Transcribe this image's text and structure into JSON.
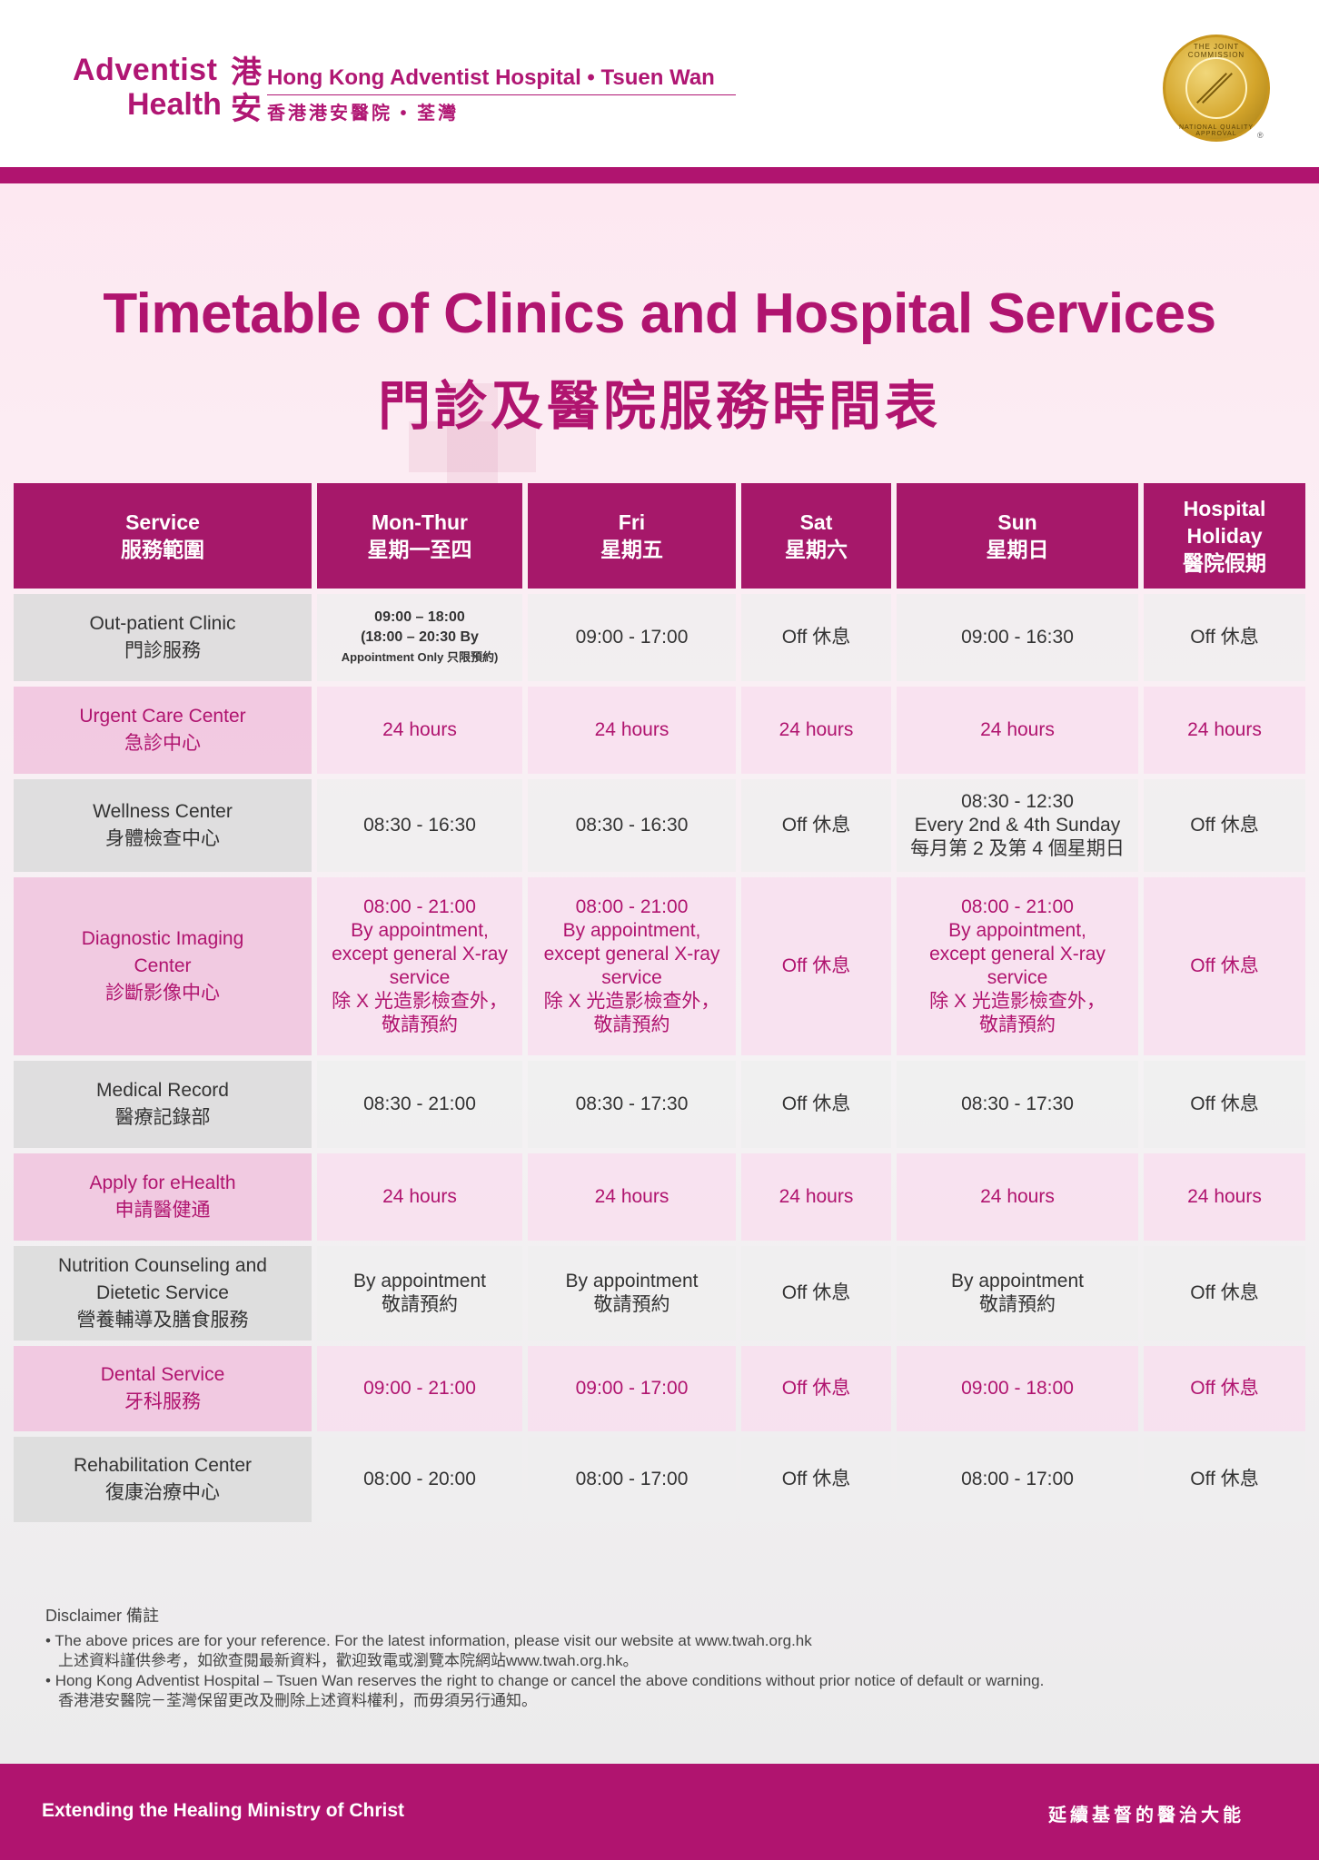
{
  "brand": {
    "logo_line1": "Adventist",
    "logo_line2": "Health",
    "logo_zh": "港安",
    "hospital_en": "Hong Kong Adventist Hospital • Tsuen Wan",
    "hospital_zh": "香港港安醫院 • 荃灣",
    "seal_top": "THE JOINT COMMISSION",
    "seal_bottom": "NATIONAL QUALITY APPROVAL",
    "seal_reg": "®",
    "accent_color": "#b0146f",
    "seal_icon": "gold-accreditation-seal-icon"
  },
  "title": {
    "en": "Timetable of Clinics and Hospital Services",
    "zh": "門診及醫院服務時間表"
  },
  "table": {
    "headers": [
      {
        "en": "Service",
        "zh": "服務範圍"
      },
      {
        "en": "Mon-Thur",
        "zh": "星期一至四"
      },
      {
        "en": "Fri",
        "zh": "星期五"
      },
      {
        "en": "Sat",
        "zh": "星期六"
      },
      {
        "en": "Sun",
        "zh": "星期日"
      },
      {
        "en": "Hospital Holiday",
        "zh": "醫院假期"
      }
    ],
    "rows": [
      {
        "label_en": "Out-patient Clinic",
        "label_zh": "門診服務",
        "mon_line1": "09:00 – 18:00",
        "mon_line2": "(18:00 – 20:30 By",
        "mon_line3": "Appointment Only 只限預約)",
        "fri": "09:00 - 17:00",
        "sat": "Off 休息",
        "sun": "09:00 - 16:30",
        "holiday": "Off 休息"
      },
      {
        "label_en": "Urgent Care Center",
        "label_zh": "急診中心",
        "mon": "24 hours",
        "fri": "24 hours",
        "sat": "24 hours",
        "sun": "24 hours",
        "holiday": "24 hours"
      },
      {
        "label_en": "Wellness Center",
        "label_zh": "身體檢查中心",
        "mon": "08:30 - 16:30",
        "fri": "08:30 - 16:30",
        "sat": "Off 休息",
        "sun_line1": "08:30 - 12:30",
        "sun_line2": "Every 2nd & 4th Sunday",
        "sun_line3": "每月第 2 及第 4 個星期日",
        "holiday": "Off 休息"
      },
      {
        "label_en_1": "Diagnostic Imaging",
        "label_en_2": "Center",
        "label_zh": "診斷影像中心",
        "mon_lines": [
          "08:00 - 21:00",
          "By appointment,",
          "except general X-ray",
          "service",
          "除 X 光造影檢查外，",
          "敬請預約"
        ],
        "fri_lines": [
          "08:00 - 21:00",
          "By appointment,",
          "except general X-ray",
          "service",
          "除 X 光造影檢查外，",
          "敬請預約"
        ],
        "sat": "Off 休息",
        "sun_lines": [
          "08:00 - 21:00",
          "By appointment,",
          "except general X-ray",
          "service",
          "除 X 光造影檢查外，",
          "敬請預約"
        ],
        "holiday": "Off 休息"
      },
      {
        "label_en": "Medical Record",
        "label_zh": "醫療記錄部",
        "mon": "08:30 - 21:00",
        "fri": "08:30 - 17:30",
        "sat": "Off 休息",
        "sun": "08:30 - 17:30",
        "holiday": "Off 休息"
      },
      {
        "label_en": "Apply for eHealth",
        "label_zh": "申請醫健通",
        "mon": "24 hours",
        "fri": "24 hours",
        "sat": "24 hours",
        "sun": "24 hours",
        "holiday": "24 hours"
      },
      {
        "label_en_1": "Nutrition Counseling and",
        "label_en_2": "Dietetic Service",
        "label_zh": "營養輔導及膳食服務",
        "mon_1": "By appointment",
        "mon_2": "敬請預約",
        "fri_1": "By appointment",
        "fri_2": "敬請預約",
        "sat": "Off 休息",
        "sun_1": "By appointment",
        "sun_2": "敬請預約",
        "holiday": "Off 休息"
      },
      {
        "label_en": "Dental Service",
        "label_zh": "牙科服務",
        "mon": "09:00 - 21:00",
        "fri": "09:00 - 17:00",
        "sat": "Off 休息",
        "sun": "09:00 - 18:00",
        "holiday": "Off 休息"
      },
      {
        "label_en": "Rehabilitation Center",
        "label_zh": "復康治療中心",
        "mon": "08:00 - 20:00",
        "fri": "08:00 - 17:00",
        "sat": "Off 休息",
        "sun": "08:00 - 17:00",
        "holiday": "Off 休息"
      }
    ]
  },
  "disclaimer": {
    "heading": "Disclaimer 備註",
    "item1_en": "The above prices are for your reference. For the latest information, please visit our website at www.twah.org.hk",
    "item1_zh": "上述資料謹供參考，如欲查閱最新資料，歡迎致電或瀏覽本院網站www.twah.org.hk。",
    "item2_en": "Hong Kong Adventist Hospital – Tsuen Wan reserves the right to change or cancel the above conditions without prior notice of default or warning.",
    "item2_zh": "香港港安醫院－荃灣保留更改及刪除上述資料權利，而毋須另行通知。"
  },
  "footer": {
    "en": "Extending the Healing Ministry of Christ",
    "zh": "延續基督的醫治大能"
  }
}
